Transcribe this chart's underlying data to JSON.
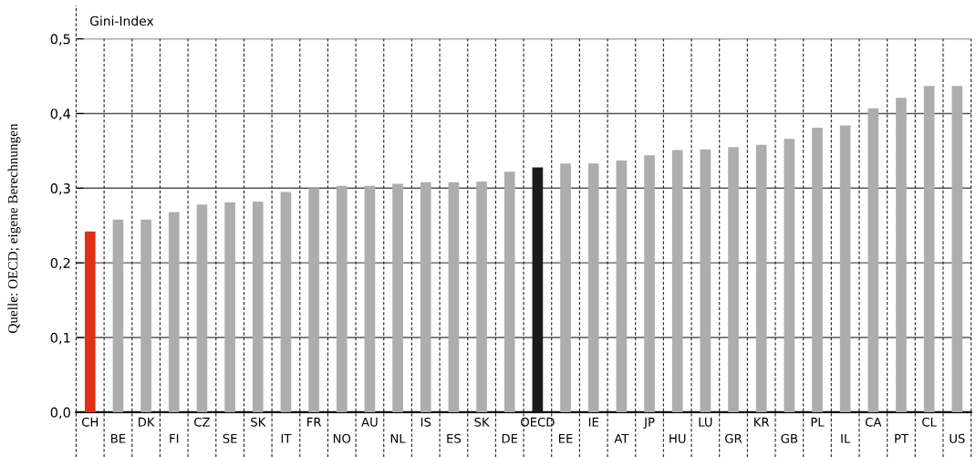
{
  "chart_data": {
    "type": "bar",
    "ylabel": "Gini-Index",
    "annotations": [
      "Quelle: OECD; eigene Berechnungen"
    ],
    "categories": [
      "CH",
      "BE",
      "DK",
      "FI",
      "CZ",
      "SE",
      "SK",
      "IT",
      "FR",
      "NO",
      "AU",
      "NL",
      "IS",
      "ES",
      "SK",
      "DE",
      "OECD",
      "EE",
      "IE",
      "AT",
      "JP",
      "HU",
      "LU",
      "GR",
      "KR",
      "GB",
      "PL",
      "IL",
      "CA",
      "PT",
      "CL",
      "US"
    ],
    "values": [
      0.242,
      0.258,
      0.258,
      0.268,
      0.278,
      0.281,
      0.282,
      0.295,
      0.3,
      0.303,
      0.303,
      0.306,
      0.308,
      0.308,
      0.309,
      0.322,
      0.328,
      0.333,
      0.333,
      0.337,
      0.344,
      0.351,
      0.352,
      0.355,
      0.358,
      0.366,
      0.381,
      0.384,
      0.407,
      0.421,
      0.437,
      0.437
    ],
    "colors": [
      "#e03016",
      "#adadad",
      "#adadad",
      "#adadad",
      "#adadad",
      "#adadad",
      "#adadad",
      "#adadad",
      "#adadad",
      "#adadad",
      "#adadad",
      "#adadad",
      "#adadad",
      "#adadad",
      "#adadad",
      "#adadad",
      "#1a1a1a",
      "#adadad",
      "#adadad",
      "#adadad",
      "#adadad",
      "#adadad",
      "#adadad",
      "#adadad",
      "#adadad",
      "#adadad",
      "#adadad",
      "#adadad",
      "#adadad",
      "#adadad",
      "#adadad",
      "#adadad"
    ],
    "ylim": [
      0,
      0.5
    ],
    "yticks": [
      {
        "value": 0,
        "label": "0,0"
      },
      {
        "value": 0.1,
        "label": "0,1"
      },
      {
        "value": 0.2,
        "label": "0,2"
      },
      {
        "value": 0.3,
        "label": "0,3"
      },
      {
        "value": 0.4,
        "label": "0,4"
      },
      {
        "value": 0.5,
        "label": "0,5"
      }
    ],
    "grid": true
  }
}
